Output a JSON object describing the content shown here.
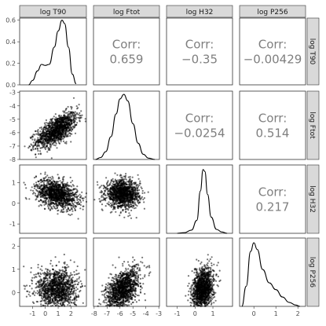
{
  "chart_data": {
    "type": "scatter",
    "subtype": "scatterplot-matrix",
    "variables": [
      "log T90",
      "log Ftot",
      "log H32",
      "log P256"
    ],
    "background": "#ffffff",
    "strip_fill": "#d9d9d9",
    "correlation_color": "#7f7f7f",
    "point_color": "#000000",
    "axes": [
      {
        "var": "log T90",
        "range": [
          -2.0,
          3.2
        ],
        "ticks": [
          -1,
          0,
          1,
          2
        ],
        "tick_labels": [
          "-1",
          "0",
          "1",
          "2"
        ]
      },
      {
        "var": "log Ftot",
        "range": [
          -8.05,
          -2.95
        ],
        "ticks": [
          -8,
          -7,
          -6,
          -5,
          -4,
          -3
        ],
        "tick_labels": [
          "-8",
          "-7",
          "-6",
          "-5",
          "-4",
          "-3"
        ]
      },
      {
        "var": "log H32",
        "range": [
          -1.6,
          2.1
        ],
        "ticks": [
          -1,
          0,
          1
        ],
        "tick_labels": [
          "-1",
          "0",
          "1"
        ]
      },
      {
        "var": "log P256",
        "range": [
          -0.65,
          2.35
        ],
        "ticks": [
          0,
          1,
          2
        ],
        "tick_labels": [
          "0",
          "1",
          "2"
        ]
      }
    ],
    "y_axes": [
      {
        "var": "log T90",
        "range": [
          0.0,
          0.62
        ],
        "ticks": [
          0.0,
          0.2,
          0.4,
          0.6
        ],
        "tick_labels": [
          "0.0",
          "0.2",
          "0.4",
          "0.6"
        ]
      },
      {
        "var": "log Ftot",
        "range": [
          -8.0,
          -2.9
        ],
        "ticks": [
          -8,
          -7,
          -6,
          -5,
          -4,
          -3
        ],
        "tick_labels": [
          "-8",
          "-7",
          "-6",
          "-5",
          "-4",
          "-3"
        ]
      },
      {
        "var": "log H32",
        "range": [
          -1.45,
          1.85
        ],
        "ticks": [
          -1,
          0,
          1
        ],
        "tick_labels": [
          "-1",
          "0",
          "1"
        ]
      },
      {
        "var": "log P256",
        "range": [
          -0.6,
          2.35
        ],
        "ticks": [
          0,
          1,
          2
        ],
        "tick_labels": [
          "0",
          "1",
          "2"
        ]
      }
    ],
    "correlations": [
      {
        "row": 0,
        "col": 1,
        "label": "Corr:",
        "value": "0.659"
      },
      {
        "row": 0,
        "col": 2,
        "label": "Corr:",
        "value": "−0.35"
      },
      {
        "row": 0,
        "col": 3,
        "label": "Corr:",
        "value": "−0.00429"
      },
      {
        "row": 1,
        "col": 2,
        "label": "Corr:",
        "value": "−0.0254"
      },
      {
        "row": 1,
        "col": 3,
        "label": "Corr:",
        "value": "0.514"
      },
      {
        "row": 2,
        "col": 3,
        "label": "Corr:",
        "value": "0.217"
      }
    ],
    "densities": [
      {
        "var": "log T90",
        "points": [
          [
            -1.3,
            0.0
          ],
          [
            -1.0,
            0.04
          ],
          [
            -0.6,
            0.13
          ],
          [
            -0.3,
            0.19
          ],
          [
            0.0,
            0.18
          ],
          [
            0.3,
            0.19
          ],
          [
            0.7,
            0.35
          ],
          [
            1.0,
            0.5
          ],
          [
            1.3,
            0.6
          ],
          [
            1.5,
            0.57
          ],
          [
            1.8,
            0.35
          ],
          [
            2.1,
            0.1
          ],
          [
            2.4,
            0.01
          ]
        ]
      },
      {
        "var": "log Ftot",
        "points": [
          [
            -7.9,
            0.0
          ],
          [
            -7.5,
            0.03
          ],
          [
            -7.1,
            0.12
          ],
          [
            -6.7,
            0.35
          ],
          [
            -6.3,
            0.7
          ],
          [
            -6.0,
            0.93
          ],
          [
            -5.7,
            1.0
          ],
          [
            -5.4,
            0.9
          ],
          [
            -5.0,
            0.55
          ],
          [
            -4.6,
            0.25
          ],
          [
            -4.2,
            0.08
          ],
          [
            -3.8,
            0.02
          ],
          [
            -3.3,
            0.0
          ]
        ]
      },
      {
        "var": "log H32",
        "points": [
          [
            -1.0,
            0.0
          ],
          [
            -0.6,
            0.01
          ],
          [
            -0.2,
            0.05
          ],
          [
            0.1,
            0.2
          ],
          [
            0.3,
            0.65
          ],
          [
            0.45,
            0.98
          ],
          [
            0.55,
            0.95
          ],
          [
            0.7,
            0.6
          ],
          [
            0.9,
            0.25
          ],
          [
            1.2,
            0.06
          ],
          [
            1.5,
            0.02
          ],
          [
            1.8,
            0.0
          ]
        ]
      },
      {
        "var": "log P256",
        "points": [
          [
            -0.55,
            0.0
          ],
          [
            -0.35,
            0.3
          ],
          [
            -0.15,
            0.82
          ],
          [
            0.0,
            0.95
          ],
          [
            0.15,
            0.85
          ],
          [
            0.4,
            0.55
          ],
          [
            0.7,
            0.35
          ],
          [
            1.0,
            0.25
          ],
          [
            1.3,
            0.14
          ],
          [
            1.6,
            0.06
          ],
          [
            1.9,
            0.02
          ],
          [
            2.1,
            0.0
          ]
        ]
      }
    ],
    "density_max": [
      0.62,
      1.05,
      1.05,
      1.02
    ],
    "scatter_clusters": [
      {
        "row": 1,
        "col": 0,
        "n": 1300,
        "x_mean": 0.9,
        "x_sd": 0.8,
        "y_mean": -5.8,
        "y_sd": 0.65,
        "corr": 0.66
      },
      {
        "row": 2,
        "col": 0,
        "n": 1300,
        "x_mean": 0.9,
        "x_sd": 0.8,
        "y_mean": 0.45,
        "y_sd": 0.35,
        "corr": -0.35
      },
      {
        "row": 2,
        "col": 1,
        "n": 1300,
        "x_mean": -5.8,
        "x_sd": 0.65,
        "y_mean": 0.45,
        "y_sd": 0.33,
        "corr": -0.03
      },
      {
        "row": 3,
        "col": 0,
        "n": 1300,
        "x_mean": 0.9,
        "x_sd": 0.8,
        "y_mean": 0.15,
        "y_sd": 0.45,
        "corr": 0.0
      },
      {
        "row": 3,
        "col": 1,
        "n": 1300,
        "x_mean": -5.8,
        "x_sd": 0.65,
        "y_mean": 0.15,
        "y_sd": 0.45,
        "corr": 0.51
      },
      {
        "row": 3,
        "col": 2,
        "n": 1300,
        "x_mean": 0.45,
        "x_sd": 0.3,
        "y_mean": 0.15,
        "y_sd": 0.45,
        "corr": 0.22
      }
    ]
  }
}
